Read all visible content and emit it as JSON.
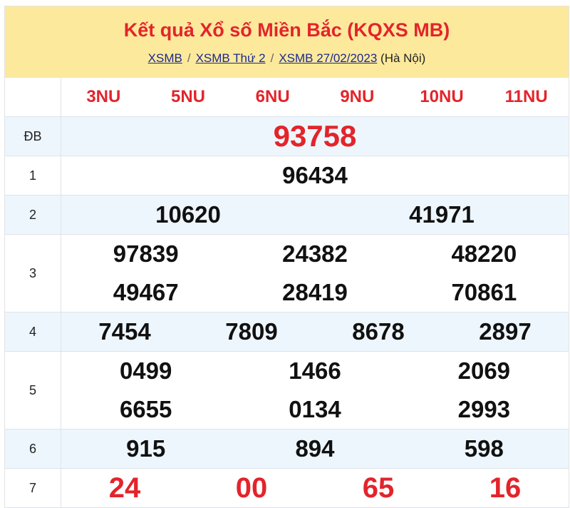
{
  "header": {
    "title": "Kết quả Xổ số Miền Bắc (KQXS MB)",
    "breadcrumb": [
      "XSMB",
      "XSMB Thứ 2",
      "XSMB 27/02/2023"
    ],
    "region": "(Hà Nội)"
  },
  "codes": [
    "3NU",
    "5NU",
    "6NU",
    "9NU",
    "10NU",
    "11NU"
  ],
  "prizes": [
    {
      "label": "ĐB",
      "cols": 1,
      "numbers": [
        "93758"
      ],
      "red": true
    },
    {
      "label": "1",
      "cols": 1,
      "numbers": [
        "96434"
      ]
    },
    {
      "label": "2",
      "cols": 2,
      "numbers": [
        "10620",
        "41971"
      ]
    },
    {
      "label": "3",
      "cols": 3,
      "numbers": [
        "97839",
        "24382",
        "48220",
        "49467",
        "28419",
        "70861"
      ]
    },
    {
      "label": "4",
      "cols": 4,
      "numbers": [
        "7454",
        "7809",
        "8678",
        "2897"
      ]
    },
    {
      "label": "5",
      "cols": 3,
      "numbers": [
        "0499",
        "1466",
        "2069",
        "6655",
        "0134",
        "2993"
      ]
    },
    {
      "label": "6",
      "cols": 3,
      "numbers": [
        "915",
        "894",
        "598"
      ]
    },
    {
      "label": "7",
      "cols": 4,
      "numbers": [
        "24",
        "00",
        "65",
        "16"
      ],
      "red": true
    }
  ],
  "colors": {
    "red": "#e3242b",
    "header_bg": "#fde99c",
    "alt_row": "#eef6fd"
  }
}
